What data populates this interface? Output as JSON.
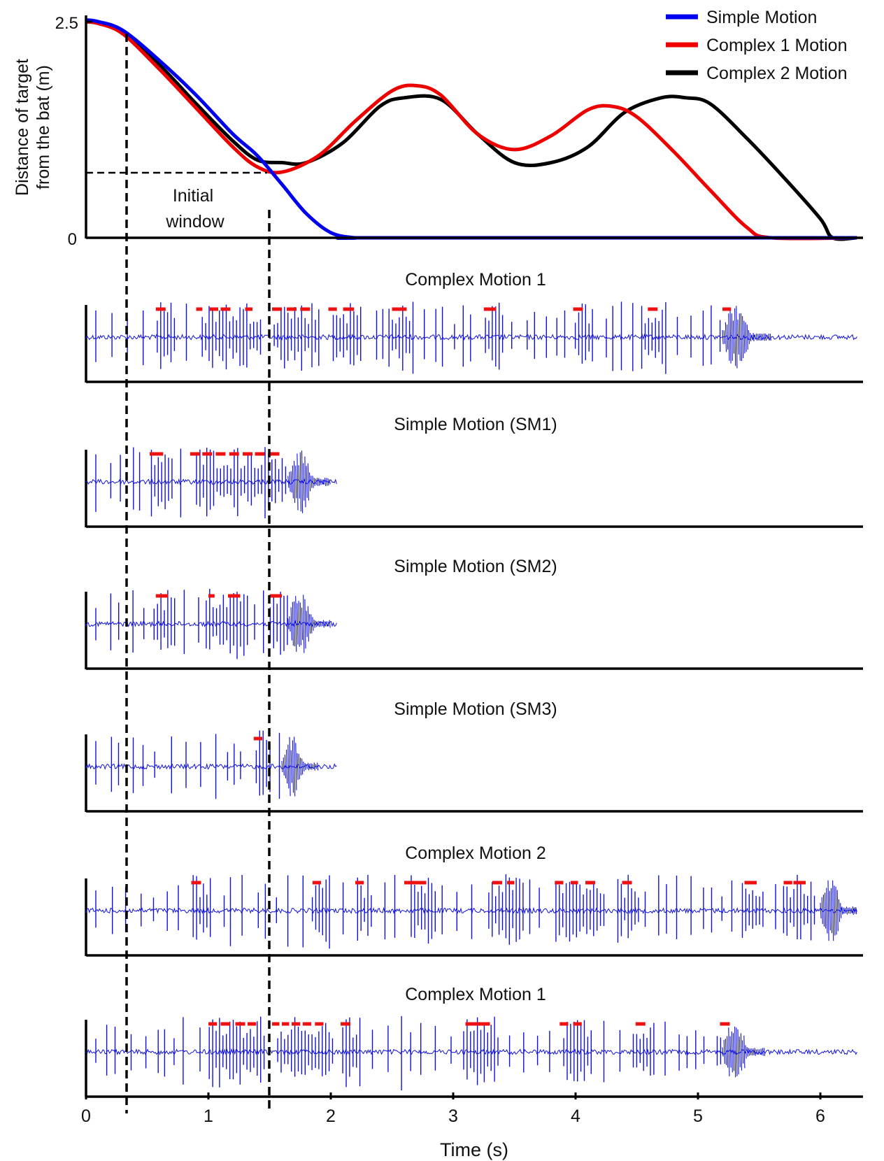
{
  "colors": {
    "simple": "#0000ee",
    "complex1": "#ee0000",
    "complex2": "#000000",
    "trace": "#1010dd",
    "buzz_marker": "#ee1111",
    "axis": "#000000"
  },
  "top_chart": {
    "ylabel_line1": "Distance of target",
    "ylabel_line2": "from the bat (m)",
    "y_ticks": [
      "2.5",
      "0"
    ],
    "annotation_line1": "Initial",
    "annotation_line2": "window",
    "legend": [
      "Simple Motion",
      "Complex 1 Motion",
      "Complex 2 Motion"
    ]
  },
  "x_axis": {
    "label": "Time (s)",
    "ticks": [
      "0",
      "1",
      "2",
      "3",
      "4",
      "5",
      "6"
    ]
  },
  "panels": [
    {
      "title": "Complex Motion 1"
    },
    {
      "title": "Simple Motion (SM1)"
    },
    {
      "title": "Simple Motion (SM2)"
    },
    {
      "title": "Simple Motion (SM3)"
    },
    {
      "title": "Complex Motion 2"
    },
    {
      "title": "Complex Motion 1"
    }
  ],
  "chart_data": [
    {
      "type": "line",
      "ylabel": "Distance of target from the bat (m)",
      "xlabel": "Time (s)",
      "xlim": [
        0,
        6.3
      ],
      "ylim": [
        0,
        2.5
      ],
      "y_ticks": [
        0,
        2.5
      ],
      "initial_window": {
        "x_start": 0.33,
        "x_end": 1.5,
        "y": 0.75
      },
      "legend_position": "top-right",
      "series": [
        {
          "name": "Simple Motion",
          "color": "#0000ee",
          "x": [
            0,
            0.1,
            0.3,
            0.6,
            0.9,
            1.2,
            1.4,
            1.6,
            1.8,
            2.0,
            2.2,
            2.4,
            6.3
          ],
          "y": [
            2.52,
            2.5,
            2.4,
            2.05,
            1.65,
            1.2,
            0.95,
            0.62,
            0.28,
            0.06,
            0.0,
            0.0,
            0.0
          ]
        },
        {
          "name": "Complex 1 Motion",
          "color": "#ee0000",
          "x": [
            0,
            0.1,
            0.3,
            0.6,
            0.9,
            1.2,
            1.4,
            1.6,
            1.9,
            2.2,
            2.5,
            2.7,
            2.9,
            3.2,
            3.5,
            3.8,
            4.1,
            4.3,
            4.5,
            4.8,
            5.1,
            5.4,
            5.6,
            6.3
          ],
          "y": [
            2.5,
            2.48,
            2.36,
            1.95,
            1.5,
            1.05,
            0.82,
            0.76,
            0.95,
            1.35,
            1.7,
            1.76,
            1.65,
            1.2,
            1.02,
            1.18,
            1.48,
            1.52,
            1.4,
            1.0,
            0.55,
            0.12,
            0.0,
            0.0
          ]
        },
        {
          "name": "Complex 2 Motion",
          "color": "#000000",
          "x": [
            0,
            0.1,
            0.3,
            0.6,
            0.9,
            1.2,
            1.4,
            1.6,
            1.8,
            2.1,
            2.4,
            2.6,
            2.9,
            3.2,
            3.5,
            3.8,
            4.1,
            4.4,
            4.7,
            4.9,
            5.1,
            5.4,
            5.7,
            6.0,
            6.1,
            6.3
          ],
          "y": [
            2.5,
            2.48,
            2.38,
            2.0,
            1.55,
            1.12,
            0.9,
            0.87,
            0.87,
            1.1,
            1.52,
            1.62,
            1.6,
            1.2,
            0.87,
            0.87,
            1.05,
            1.45,
            1.62,
            1.62,
            1.55,
            1.15,
            0.7,
            0.22,
            0.0,
            0.0
          ]
        }
      ]
    },
    {
      "type": "line",
      "title": "Complex Motion 1",
      "signal": "echolocation trace",
      "x_end": 6.3,
      "buzz_window": [
        5.2,
        5.6
      ],
      "marker_segments": [
        [
          0.57,
          0.65
        ],
        [
          0.9,
          0.95
        ],
        [
          1.01,
          1.08
        ],
        [
          1.1,
          1.18
        ],
        [
          1.3,
          1.36
        ],
        [
          1.52,
          1.6
        ],
        [
          1.64,
          1.72
        ],
        [
          1.75,
          1.83
        ],
        [
          1.98,
          2.05
        ],
        [
          2.1,
          2.19
        ],
        [
          2.5,
          2.62
        ],
        [
          3.25,
          3.35
        ],
        [
          3.98,
          4.06
        ],
        [
          4.59,
          4.67
        ],
        [
          5.2,
          5.27
        ]
      ]
    },
    {
      "type": "line",
      "title": "Simple Motion (SM1)",
      "signal": "echolocation trace",
      "x_end": 2.05,
      "buzz_window": [
        1.65,
        2.0
      ],
      "marker_segments": [
        [
          0.52,
          0.63
        ],
        [
          0.85,
          0.93
        ],
        [
          0.95,
          1.03
        ],
        [
          1.06,
          1.14
        ],
        [
          1.17,
          1.25
        ],
        [
          1.28,
          1.36
        ],
        [
          1.38,
          1.46
        ],
        [
          1.5,
          1.58
        ]
      ]
    },
    {
      "type": "line",
      "title": "Simple Motion (SM2)",
      "signal": "echolocation trace",
      "x_end": 2.05,
      "buzz_window": [
        1.65,
        2.0
      ],
      "marker_segments": [
        [
          0.57,
          0.67
        ],
        [
          1.0,
          1.05
        ],
        [
          1.16,
          1.26
        ],
        [
          1.5,
          1.6
        ]
      ]
    },
    {
      "type": "line",
      "title": "Simple Motion (SM3)",
      "signal": "echolocation trace",
      "x_end": 2.05,
      "buzz_window": [
        1.6,
        1.9
      ],
      "marker_segments": [
        [
          1.37,
          1.44
        ]
      ]
    },
    {
      "type": "line",
      "title": "Complex Motion 2",
      "signal": "echolocation trace",
      "x_end": 6.3,
      "buzz_window": [
        6.0,
        6.3
      ],
      "marker_segments": [
        [
          0.86,
          0.94
        ],
        [
          1.85,
          1.92
        ],
        [
          2.2,
          2.27
        ],
        [
          2.6,
          2.78
        ],
        [
          3.32,
          3.4
        ],
        [
          3.44,
          3.5
        ],
        [
          3.83,
          3.9
        ],
        [
          3.96,
          4.02
        ],
        [
          4.08,
          4.16
        ],
        [
          4.38,
          4.46
        ],
        [
          5.38,
          5.48
        ],
        [
          5.7,
          5.77
        ],
        [
          5.78,
          5.88
        ]
      ]
    },
    {
      "type": "line",
      "title": "Complex Motion 1",
      "signal": "echolocation trace",
      "x_end": 6.3,
      "buzz_window": [
        5.2,
        5.55
      ],
      "marker_segments": [
        [
          1.0,
          1.07
        ],
        [
          1.1,
          1.18
        ],
        [
          1.22,
          1.3
        ],
        [
          1.32,
          1.39
        ],
        [
          1.52,
          1.58
        ],
        [
          1.6,
          1.66
        ],
        [
          1.68,
          1.75
        ],
        [
          1.77,
          1.84
        ],
        [
          1.87,
          1.94
        ],
        [
          2.08,
          2.16
        ],
        [
          3.1,
          3.3
        ],
        [
          3.87,
          3.94
        ],
        [
          3.98,
          4.05
        ],
        [
          4.49,
          4.57
        ],
        [
          5.18,
          5.26
        ]
      ]
    }
  ]
}
